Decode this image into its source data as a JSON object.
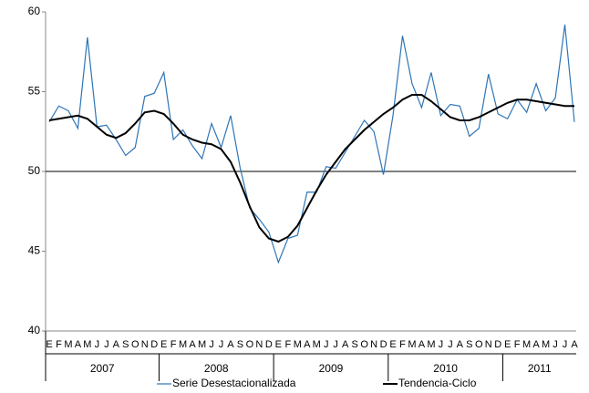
{
  "chart_data": {
    "type": "line",
    "categories": [
      "E",
      "F",
      "M",
      "A",
      "M",
      "J",
      "J",
      "A",
      "S",
      "O",
      "N",
      "D",
      "E",
      "F",
      "M",
      "A",
      "M",
      "J",
      "J",
      "A",
      "S",
      "O",
      "N",
      "D",
      "E",
      "F",
      "M",
      "A",
      "M",
      "J",
      "J",
      "A",
      "S",
      "O",
      "N",
      "D",
      "E",
      "F",
      "M",
      "A",
      "M",
      "J",
      "J",
      "A",
      "S",
      "O",
      "N",
      "D",
      "E",
      "F",
      "M",
      "A",
      "M",
      "J",
      "J",
      "A"
    ],
    "x_groups": [
      {
        "label": "2007",
        "count": 12
      },
      {
        "label": "2008",
        "count": 12
      },
      {
        "label": "2009",
        "count": 12
      },
      {
        "label": "2010",
        "count": 12
      },
      {
        "label": "2011",
        "count": 8
      }
    ],
    "series": [
      {
        "name": "Serie Desestacionalizada",
        "color": "#2e75b6",
        "width": 1.2,
        "values": [
          53.1,
          54.1,
          53.8,
          52.7,
          58.4,
          52.8,
          52.9,
          52.0,
          51.0,
          51.5,
          54.7,
          54.9,
          56.2,
          52.0,
          52.6,
          51.6,
          50.8,
          53.0,
          51.5,
          53.5,
          50.2,
          47.7,
          47.0,
          46.2,
          44.3,
          45.8,
          46.0,
          48.7,
          48.7,
          50.3,
          50.2,
          51.2,
          52.2,
          53.2,
          52.5,
          49.8,
          53.5,
          58.5,
          55.5,
          54.0,
          56.2,
          53.5,
          54.2,
          54.1,
          52.2,
          52.7,
          56.1,
          53.6,
          53.3,
          54.5,
          53.7,
          55.5,
          53.8,
          54.6,
          59.2,
          53.1
        ]
      },
      {
        "name": "Tendencia-Ciclo",
        "color": "#000000",
        "width": 2,
        "values": [
          53.2,
          53.3,
          53.4,
          53.5,
          53.3,
          52.8,
          52.3,
          52.1,
          52.4,
          53.0,
          53.7,
          53.8,
          53.6,
          53.0,
          52.3,
          52.0,
          51.8,
          51.7,
          51.4,
          50.6,
          49.3,
          47.8,
          46.5,
          45.8,
          45.6,
          45.9,
          46.6,
          47.7,
          48.8,
          49.8,
          50.6,
          51.4,
          52.0,
          52.6,
          53.1,
          53.6,
          54.0,
          54.5,
          54.8,
          54.8,
          54.4,
          53.9,
          53.4,
          53.2,
          53.2,
          53.4,
          53.7,
          54.0,
          54.3,
          54.5,
          54.5,
          54.4,
          54.3,
          54.2,
          54.1,
          54.1
        ]
      }
    ],
    "ylim": [
      40,
      60
    ],
    "yticks": [
      40,
      45,
      50,
      55,
      60
    ],
    "reference_line": 50,
    "legend": "bottom"
  }
}
